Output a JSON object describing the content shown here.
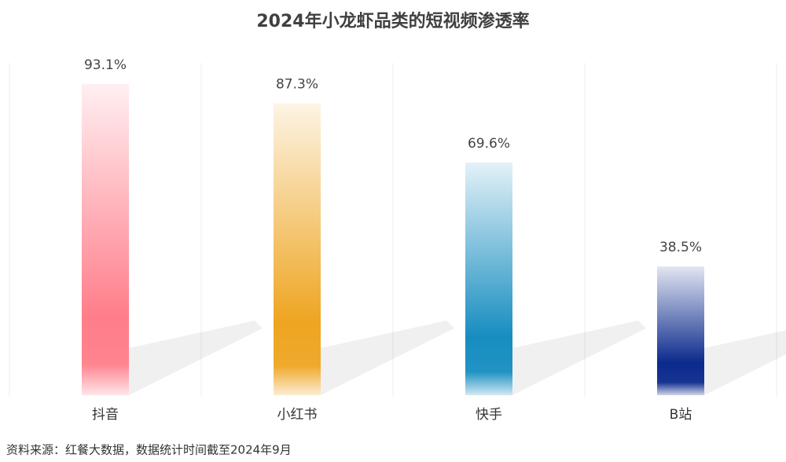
{
  "chart_data": {
    "type": "bar",
    "title": "2024年小龙虾品类的短视频渗透率",
    "categories": [
      "抖音",
      "小红书",
      "快手",
      "B站"
    ],
    "values": [
      93.1,
      87.3,
      69.6,
      38.5
    ],
    "value_labels": [
      "93.1%",
      "87.3%",
      "69.6%",
      "38.5%"
    ],
    "colors": [
      "#ff7d8a",
      "#eea521",
      "#168dc0",
      "#0b2a8c"
    ],
    "source": "资料来源：红餐大数据，数据统计时间截至2024年9月"
  }
}
